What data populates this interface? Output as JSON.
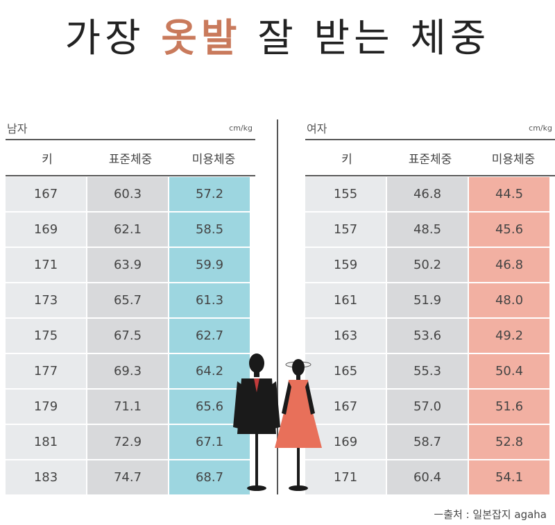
{
  "title": {
    "prefix": "가장 ",
    "highlight": "옷발",
    "suffix": " 잘 받는 체중"
  },
  "men": {
    "label": "남자",
    "unit": "cm/kg",
    "headers": [
      "키",
      "표준체중",
      "미용체중"
    ],
    "rows": [
      [
        "167",
        "60.3",
        "57.2"
      ],
      [
        "169",
        "62.1",
        "58.5"
      ],
      [
        "171",
        "63.9",
        "59.9"
      ],
      [
        "173",
        "65.7",
        "61.3"
      ],
      [
        "175",
        "67.5",
        "62.7"
      ],
      [
        "177",
        "69.3",
        "64.2"
      ],
      [
        "179",
        "71.1",
        "65.6"
      ],
      [
        "181",
        "72.9",
        "67.1"
      ],
      [
        "183",
        "74.7",
        "68.7"
      ]
    ]
  },
  "women": {
    "label": "여자",
    "unit": "cm/kg",
    "headers": [
      "키",
      "표준체중",
      "미용체중"
    ],
    "rows": [
      [
        "155",
        "46.8",
        "44.5"
      ],
      [
        "157",
        "48.5",
        "45.6"
      ],
      [
        "159",
        "50.2",
        "46.8"
      ],
      [
        "161",
        "51.9",
        "48.0"
      ],
      [
        "163",
        "53.6",
        "49.2"
      ],
      [
        "165",
        "55.3",
        "50.4"
      ],
      [
        "167",
        "57.0",
        "51.6"
      ],
      [
        "169",
        "58.7",
        "52.8"
      ],
      [
        "171",
        "60.4",
        "54.1"
      ]
    ]
  },
  "source": "ㅡ출처 : 일본잡지 agaha",
  "colors": {
    "men_highlight": "#9dd6e0",
    "women_highlight": "#f2b0a2",
    "title_highlight": "#c97a5c"
  }
}
